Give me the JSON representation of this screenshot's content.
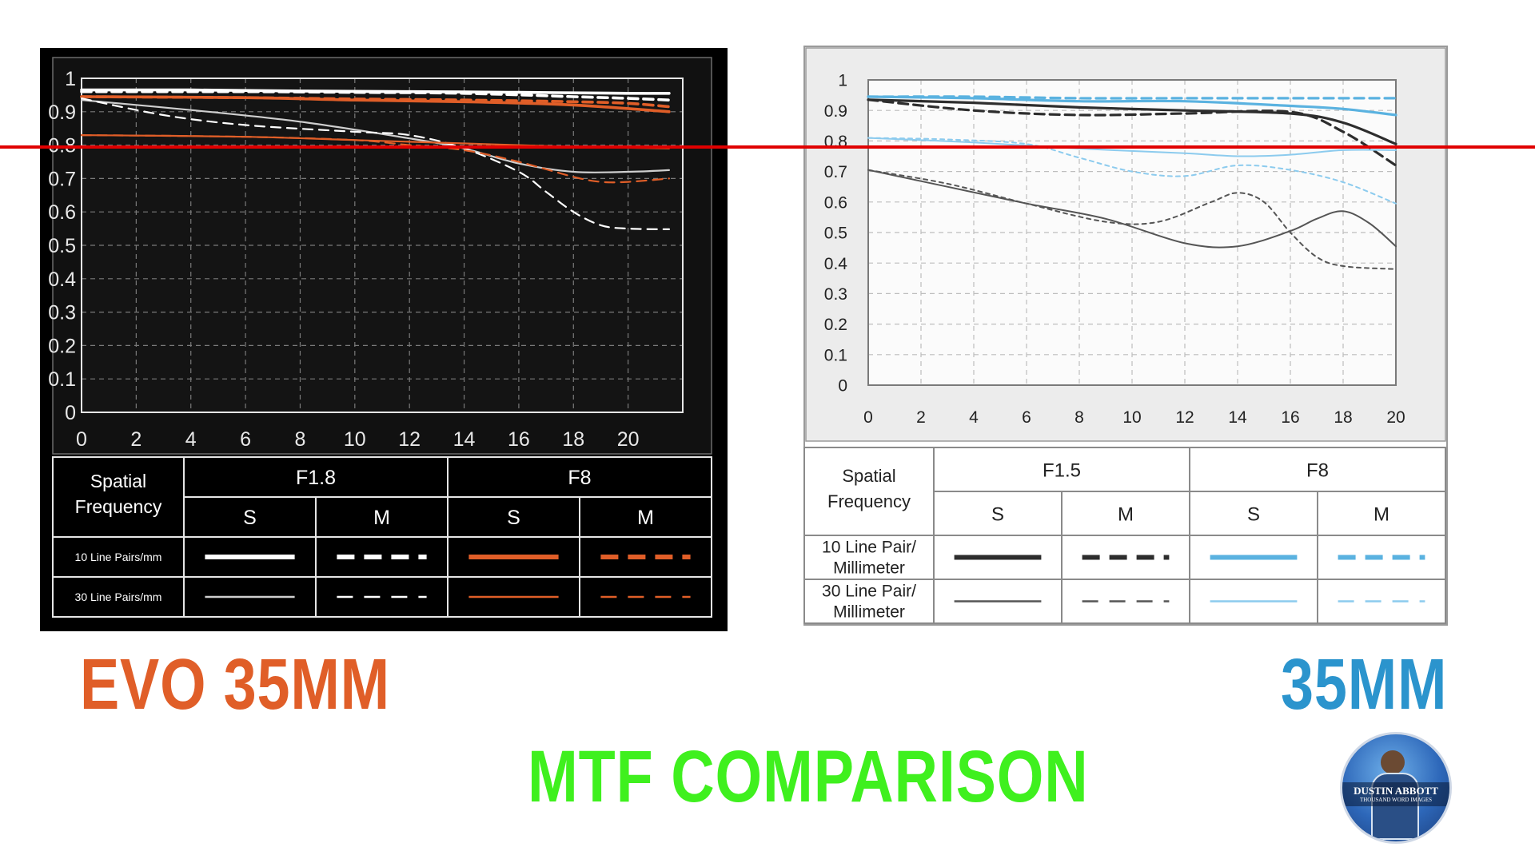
{
  "titles": {
    "left": "EVO 35MM",
    "right": "35MM",
    "bottom": "MTF COMPARISON"
  },
  "logo": {
    "line1": "DUSTIN ABBOTT",
    "line2": "THOUSAND WORD IMAGES"
  },
  "colors": {
    "evo_orange": "#e05e28",
    "lens_blue": "#2b94cd",
    "title_green": "#3ff01e",
    "reference_line": "#e00000"
  },
  "reference_line": {
    "y": 0.8
  },
  "chart_data": [
    {
      "type": "line",
      "panel": "left",
      "theme": "dark",
      "xlim": [
        0,
        22
      ],
      "ylim": [
        0,
        1
      ],
      "x_ticks": [
        "0",
        "2",
        "4",
        "6",
        "8",
        "10",
        "12",
        "14",
        "16",
        "18",
        "20"
      ],
      "y_ticks": [
        "0",
        "0.1",
        "0.2",
        "0.3",
        "0.4",
        "0.5",
        "0.6",
        "0.7",
        "0.8",
        "0.9",
        "1"
      ],
      "grid": true,
      "legend": {
        "header": "Spatial Frequency",
        "apertures": [
          "F1.8",
          "F8"
        ],
        "types": [
          "S",
          "M",
          "S",
          "M"
        ],
        "rows": [
          "10 Line Pairs/mm",
          "30 Line Pairs/mm"
        ]
      },
      "series": [
        {
          "name": "F1.8 S 10",
          "color": "#ffffff",
          "dash": false,
          "bold": true,
          "points": [
            [
              0,
              0.965
            ],
            [
              4,
              0.965
            ],
            [
              8,
              0.962
            ],
            [
              12,
              0.96
            ],
            [
              16,
              0.958
            ],
            [
              20,
              0.955
            ],
            [
              21.5,
              0.955
            ]
          ]
        },
        {
          "name": "F1.8 M 10",
          "color": "#ffffff",
          "dash": true,
          "bold": true,
          "points": [
            [
              0,
              0.96
            ],
            [
              6,
              0.96
            ],
            [
              10,
              0.958
            ],
            [
              14,
              0.955
            ],
            [
              18,
              0.945
            ],
            [
              20,
              0.94
            ],
            [
              21.5,
              0.935
            ]
          ]
        },
        {
          "name": "F8 S 10",
          "color": "#e05e28",
          "dash": false,
          "bold": true,
          "points": [
            [
              0,
              0.945
            ],
            [
              6,
              0.942
            ],
            [
              10,
              0.935
            ],
            [
              14,
              0.93
            ],
            [
              18,
              0.92
            ],
            [
              21.5,
              0.9
            ]
          ]
        },
        {
          "name": "F8 M 10",
          "color": "#e05e28",
          "dash": true,
          "bold": true,
          "points": [
            [
              0,
              0.945
            ],
            [
              6,
              0.942
            ],
            [
              10,
              0.938
            ],
            [
              14,
              0.935
            ],
            [
              18,
              0.93
            ],
            [
              20,
              0.925
            ],
            [
              21.5,
              0.915
            ]
          ]
        },
        {
          "name": "F1.8 S 30",
          "color": "#cfcfcf",
          "dash": false,
          "bold": false,
          "points": [
            [
              0,
              0.935
            ],
            [
              4,
              0.905
            ],
            [
              8,
              0.87
            ],
            [
              12,
              0.82
            ],
            [
              14,
              0.79
            ],
            [
              16,
              0.745
            ],
            [
              18,
              0.72
            ],
            [
              20,
              0.72
            ],
            [
              21.5,
              0.725
            ]
          ]
        },
        {
          "name": "F1.8 M 30",
          "color": "#ffffff",
          "dash": true,
          "bold": false,
          "points": [
            [
              0,
              0.94
            ],
            [
              3,
              0.89
            ],
            [
              6,
              0.86
            ],
            [
              10,
              0.84
            ],
            [
              12,
              0.83
            ],
            [
              14,
              0.79
            ],
            [
              16,
              0.72
            ],
            [
              17,
              0.66
            ],
            [
              18,
              0.6
            ],
            [
              19,
              0.56
            ],
            [
              20,
              0.55
            ],
            [
              21.5,
              0.548
            ]
          ]
        },
        {
          "name": "F8 S 30",
          "color": "#e05e28",
          "dash": false,
          "bold": false,
          "points": [
            [
              0,
              0.83
            ],
            [
              6,
              0.825
            ],
            [
              10,
              0.815
            ],
            [
              14,
              0.805
            ],
            [
              18,
              0.795
            ],
            [
              21.5,
              0.79
            ]
          ]
        },
        {
          "name": "F8 M 30",
          "color": "#e05e28",
          "dash": true,
          "bold": false,
          "points": [
            [
              0,
              0.83
            ],
            [
              6,
              0.825
            ],
            [
              10,
              0.815
            ],
            [
              12,
              0.8
            ],
            [
              14,
              0.785
            ],
            [
              16,
              0.75
            ],
            [
              18,
              0.705
            ],
            [
              19,
              0.69
            ],
            [
              20,
              0.69
            ],
            [
              21.5,
              0.7
            ]
          ]
        }
      ]
    },
    {
      "type": "line",
      "panel": "right",
      "theme": "light",
      "xlim": [
        0,
        20
      ],
      "ylim": [
        0,
        1
      ],
      "x_ticks": [
        "0",
        "2",
        "4",
        "6",
        "8",
        "10",
        "12",
        "14",
        "16",
        "18",
        "20"
      ],
      "y_ticks": [
        "0",
        "0.1",
        "0.2",
        "0.3",
        "0.4",
        "0.5",
        "0.6",
        "0.7",
        "0.8",
        "0.9",
        "1"
      ],
      "grid": true,
      "legend": {
        "header": "Spatial Frequency",
        "apertures": [
          "F1.5",
          "F8"
        ],
        "types": [
          "S",
          "M",
          "S",
          "M"
        ],
        "rows": [
          "10 Line Pair/ Millimeter",
          "30 Line Pair/ Millimeter"
        ]
      },
      "series": [
        {
          "name": "F1.5 S 10",
          "color": "#2d2d2d",
          "dash": false,
          "bold": true,
          "points": [
            [
              0,
              0.935
            ],
            [
              4,
              0.925
            ],
            [
              8,
              0.91
            ],
            [
              12,
              0.9
            ],
            [
              16,
              0.89
            ],
            [
              18,
              0.86
            ],
            [
              20,
              0.79
            ]
          ]
        },
        {
          "name": "F1.5 M 10",
          "color": "#2d2d2d",
          "dash": true,
          "bold": true,
          "points": [
            [
              0,
              0.935
            ],
            [
              4,
              0.9
            ],
            [
              8,
              0.885
            ],
            [
              12,
              0.89
            ],
            [
              16,
              0.895
            ],
            [
              18,
              0.83
            ],
            [
              20,
              0.72
            ]
          ]
        },
        {
          "name": "F8 S 10",
          "color": "#5ab2e0",
          "dash": false,
          "bold": true,
          "points": [
            [
              0,
              0.945
            ],
            [
              4,
              0.94
            ],
            [
              8,
              0.93
            ],
            [
              12,
              0.93
            ],
            [
              16,
              0.915
            ],
            [
              18,
              0.905
            ],
            [
              20,
              0.885
            ]
          ]
        },
        {
          "name": "F8 M 10",
          "color": "#5ab2e0",
          "dash": true,
          "bold": true,
          "points": [
            [
              0,
              0.945
            ],
            [
              4,
              0.945
            ],
            [
              8,
              0.94
            ],
            [
              12,
              0.94
            ],
            [
              16,
              0.94
            ],
            [
              20,
              0.94
            ]
          ]
        },
        {
          "name": "F1.5 S 30",
          "color": "#555555",
          "dash": false,
          "bold": false,
          "points": [
            [
              0,
              0.705
            ],
            [
              3,
              0.65
            ],
            [
              6,
              0.595
            ],
            [
              9,
              0.545
            ],
            [
              12,
              0.465
            ],
            [
              14,
              0.455
            ],
            [
              16,
              0.505
            ],
            [
              17,
              0.545
            ],
            [
              18,
              0.57
            ],
            [
              19,
              0.53
            ],
            [
              20,
              0.455
            ]
          ]
        },
        {
          "name": "F1.5 M 30",
          "color": "#555555",
          "dash": true,
          "bold": false,
          "points": [
            [
              0,
              0.705
            ],
            [
              3,
              0.66
            ],
            [
              6,
              0.595
            ],
            [
              9,
              0.535
            ],
            [
              11,
              0.535
            ],
            [
              13,
              0.6
            ],
            [
              14,
              0.63
            ],
            [
              15,
              0.6
            ],
            [
              16,
              0.5
            ],
            [
              17,
              0.42
            ],
            [
              18,
              0.39
            ],
            [
              20,
              0.38
            ]
          ]
        },
        {
          "name": "F8 S 30",
          "color": "#8ccbee",
          "dash": false,
          "bold": false,
          "points": [
            [
              0,
              0.81
            ],
            [
              4,
              0.795
            ],
            [
              8,
              0.775
            ],
            [
              12,
              0.76
            ],
            [
              14,
              0.75
            ],
            [
              16,
              0.755
            ],
            [
              18,
              0.77
            ],
            [
              20,
              0.77
            ]
          ]
        },
        {
          "name": "F8 M 30",
          "color": "#8ccbee",
          "dash": true,
          "bold": false,
          "points": [
            [
              0,
              0.81
            ],
            [
              3,
              0.805
            ],
            [
              6,
              0.79
            ],
            [
              8,
              0.745
            ],
            [
              10,
              0.7
            ],
            [
              12,
              0.685
            ],
            [
              14,
              0.72
            ],
            [
              16,
              0.705
            ],
            [
              18,
              0.665
            ],
            [
              20,
              0.595
            ]
          ]
        }
      ]
    }
  ]
}
